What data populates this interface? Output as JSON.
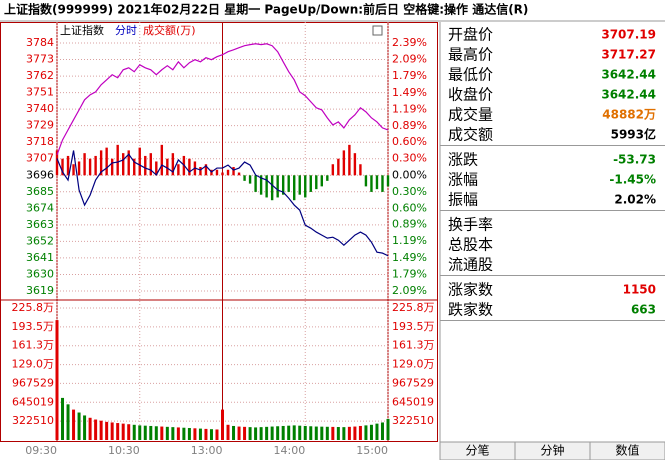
{
  "header": {
    "title": "上证指数(999999)  2021年02月22日 星期一  PageUp/Down:前后日 空格键:操作 通达信(R)"
  },
  "chart_data": {
    "type": "line",
    "legend": [
      "上证指数",
      "分时",
      "成交额(万)"
    ],
    "x": [
      0,
      4,
      8,
      12,
      16,
      20,
      24,
      28,
      32,
      36,
      40,
      44,
      48,
      52,
      56,
      60,
      64,
      68,
      72,
      76,
      80,
      84,
      88,
      92,
      96,
      100,
      104,
      108,
      112,
      116,
      120,
      124,
      128,
      132,
      136,
      140,
      144,
      148,
      152,
      156,
      160,
      164,
      168,
      172,
      176,
      180,
      184,
      188,
      192,
      196,
      200,
      204,
      208,
      212,
      216,
      220,
      224,
      228,
      232,
      236,
      240
    ],
    "xlim": [
      0,
      240
    ],
    "xticks": [
      {
        "value": 0,
        "label": "09:30"
      },
      {
        "value": 60,
        "label": "10:30"
      },
      {
        "value": 120,
        "label": "13:00"
      },
      {
        "value": 180,
        "label": "14:00"
      },
      {
        "value": 240,
        "label": "15:00"
      }
    ],
    "ylim": [
      3619,
      3784
    ],
    "yticks": [
      3784,
      3773,
      3762,
      3751,
      3740,
      3729,
      3718,
      3707,
      3696,
      3685,
      3674,
      3663,
      3652,
      3641,
      3630,
      3619
    ],
    "y2lim": [
      -2.09,
      2.39
    ],
    "y2ticks": [
      {
        "value": 2.39,
        "label": "2.39%"
      },
      {
        "value": 2.09,
        "label": "2.09%"
      },
      {
        "value": 1.79,
        "label": "1.79%"
      },
      {
        "value": 1.49,
        "label": "1.49%"
      },
      {
        "value": 1.19,
        "label": "1.19%"
      },
      {
        "value": 0.89,
        "label": "0.89%"
      },
      {
        "value": 0.6,
        "label": "0.60%"
      },
      {
        "value": 0.3,
        "label": "0.30%"
      },
      {
        "value": 0,
        "label": "0.00%"
      },
      {
        "value": -0.3,
        "label": "0.30%"
      },
      {
        "value": -0.6,
        "label": "0.60%"
      },
      {
        "value": -0.89,
        "label": "0.89%"
      },
      {
        "value": -1.19,
        "label": "1.19%"
      },
      {
        "value": -1.49,
        "label": "1.49%"
      },
      {
        "value": -1.79,
        "label": "1.79%"
      },
      {
        "value": -2.09,
        "label": "2.09%"
      }
    ],
    "series": [
      {
        "color": "#000080",
        "values": [
          3707.19,
          3698.2,
          3692.8,
          3712.5,
          3686.2,
          3676.2,
          3682.8,
          3692.8,
          3698.2,
          3700.8,
          3704.2,
          3704.8,
          3706.2,
          3710,
          3704.8,
          3702.8,
          3700.8,
          3699.5,
          3696.2,
          3702.8,
          3700.8,
          3698.2,
          3706.2,
          3702.8,
          3698.2,
          3700.8,
          3699.5,
          3702.2,
          3698.2,
          3700.8,
          3700.8,
          3702.8,
          3699.5,
          3700.8,
          3704.8,
          3702.8,
          3696.2,
          3694.2,
          3692.8,
          3689.5,
          3686.2,
          3684.8,
          3680.8,
          3676.2,
          3672.8,
          3662.8,
          3660.8,
          3658.2,
          3656.2,
          3654.2,
          3654.8,
          3652.8,
          3649.5,
          3652.8,
          3656.2,
          3658.2,
          3656.2,
          3651.5,
          3644.8,
          3644.2,
          3642.44
        ]
      },
      {
        "color": "#c000c0",
        "values": [
          3709.5,
          3719.5,
          3726.2,
          3732.9,
          3739.5,
          3746.2,
          3749.5,
          3751.5,
          3756.2,
          3759.5,
          3762.9,
          3760.9,
          3766.2,
          3767.5,
          3764.9,
          3769.5,
          3767.5,
          3766.2,
          3762.9,
          3766.2,
          3768.9,
          3766.2,
          3771.5,
          3767.5,
          3770.9,
          3772.9,
          3771.5,
          3774.2,
          3772.9,
          3774.9,
          3776.2,
          3778.2,
          3779.5,
          3780.9,
          3782.2,
          3782.9,
          3783.5,
          3782.9,
          3783.5,
          3782.2,
          3778.2,
          3771.5,
          3764.9,
          3759.5,
          3751.5,
          3748.9,
          3744.9,
          3740.9,
          3739.5,
          3734.2,
          3729.5,
          3731.5,
          3727.5,
          3732.9,
          3736.2,
          3740.9,
          3738.2,
          3734.2,
          3731.5,
          3727.5,
          3726.2
        ]
      }
    ],
    "breadth": {
      "axis": "y2",
      "up_color": "#e00000",
      "down_color": "#008000",
      "values": [
        0.45,
        0.3,
        0.35,
        0.2,
        0.25,
        0.4,
        0.3,
        0.35,
        0.45,
        0.5,
        0.3,
        0.55,
        0.4,
        0.45,
        0.3,
        0.5,
        0.35,
        0.4,
        0.25,
        0.55,
        0.3,
        0.4,
        0.2,
        0.35,
        0.3,
        0.25,
        0.15,
        0.2,
        0.1,
        0.1,
        0.05,
        0.1,
        0.15,
        0.05,
        -0.1,
        -0.15,
        -0.3,
        -0.35,
        -0.4,
        -0.45,
        -0.4,
        -0.35,
        -0.3,
        -0.45,
        -0.35,
        -0.4,
        -0.3,
        -0.25,
        -0.2,
        -0.1,
        0.2,
        0.3,
        0.45,
        0.55,
        0.4,
        0.2,
        -0.2,
        -0.3,
        -0.25,
        -0.3,
        -0.2
      ]
    },
    "volume": {
      "up_color": "#e00000",
      "down_color": "#008000",
      "vlim": [
        0,
        2257568
      ],
      "vticks": [
        {
          "value": 2257568,
          "label": "225.8万"
        },
        {
          "value": 1935058,
          "label": "193.5万"
        },
        {
          "value": 1612548,
          "label": "161.3万"
        },
        {
          "value": 1290039,
          "label": "129.0万"
        },
        967529,
        645019,
        322510
      ],
      "values": [
        2050000,
        720000,
        610000,
        520000,
        470000,
        420000,
        380000,
        350000,
        330000,
        310000,
        300000,
        290000,
        280000,
        270000,
        260000,
        250000,
        245000,
        240000,
        235000,
        230000,
        225000,
        220000,
        215000,
        210000,
        205000,
        200000,
        195000,
        190000,
        185000,
        180000,
        520000,
        260000,
        240000,
        230000,
        225000,
        220000,
        215000,
        220000,
        225000,
        230000,
        235000,
        240000,
        245000,
        250000,
        245000,
        240000,
        235000,
        230000,
        228000,
        226000,
        224000,
        222000,
        220000,
        225000,
        230000,
        240000,
        250000,
        260000,
        280000,
        300000,
        360000
      ]
    }
  },
  "quote_panel": {
    "sections": [
      [
        {
          "label": "开盘价",
          "value": "3707.19",
          "color": "#e00000"
        },
        {
          "label": "最高价",
          "value": "3717.27",
          "color": "#e00000"
        },
        {
          "label": "最低价",
          "value": "3642.44",
          "color": "#008000"
        },
        {
          "label": "收盘价",
          "value": "3642.44",
          "color": "#008000"
        },
        {
          "label": "成交量",
          "value": "48882万",
          "color": "#e07000"
        },
        {
          "label": "成交额",
          "value": "5993亿",
          "color": "#000000"
        }
      ],
      [
        {
          "label": "涨跌",
          "value": "-53.73",
          "color": "#008000"
        },
        {
          "label": "涨幅",
          "value": "-1.45%",
          "color": "#008000"
        },
        {
          "label": "振幅",
          "value": "2.02%",
          "color": "#000000"
        }
      ],
      [
        {
          "label": "换手率"
        },
        {
          "label": "总股本"
        },
        {
          "label": "流通股"
        }
      ],
      [
        {
          "label": "涨家数",
          "value": "1150",
          "color": "#e00000"
        },
        {
          "label": "跌家数",
          "value": "663",
          "color": "#008000"
        }
      ]
    ]
  },
  "tabs": {
    "items": [
      "分笔",
      "分钟",
      "数值"
    ],
    "active": 2
  }
}
